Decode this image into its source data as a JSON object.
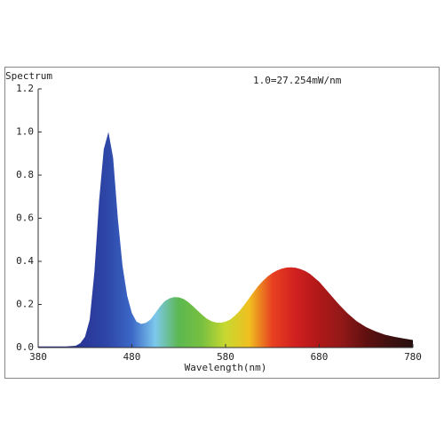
{
  "chart_data": {
    "type": "area",
    "title": "Spectrum",
    "subtitle": "1.0=27.254mW/nm",
    "x_label": "Wavelength(nm)",
    "x": [
      380,
      390,
      400,
      410,
      420,
      425,
      430,
      435,
      440,
      445,
      450,
      455,
      460,
      465,
      470,
      475,
      480,
      485,
      490,
      495,
      500,
      505,
      510,
      515,
      520,
      525,
      530,
      535,
      540,
      545,
      550,
      555,
      560,
      565,
      570,
      575,
      580,
      585,
      590,
      595,
      600,
      605,
      610,
      615,
      620,
      625,
      630,
      635,
      640,
      645,
      650,
      655,
      660,
      665,
      670,
      680,
      690,
      700,
      710,
      720,
      730,
      740,
      750,
      760,
      770,
      780
    ],
    "values": [
      0.005,
      0.005,
      0.005,
      0.005,
      0.008,
      0.02,
      0.05,
      0.13,
      0.35,
      0.68,
      0.92,
      1.0,
      0.88,
      0.6,
      0.38,
      0.24,
      0.16,
      0.12,
      0.11,
      0.115,
      0.13,
      0.16,
      0.19,
      0.215,
      0.228,
      0.234,
      0.233,
      0.226,
      0.212,
      0.193,
      0.172,
      0.152,
      0.134,
      0.122,
      0.116,
      0.115,
      0.12,
      0.13,
      0.148,
      0.17,
      0.198,
      0.228,
      0.258,
      0.286,
      0.31,
      0.33,
      0.346,
      0.358,
      0.366,
      0.371,
      0.372,
      0.37,
      0.364,
      0.355,
      0.342,
      0.305,
      0.255,
      0.205,
      0.16,
      0.122,
      0.095,
      0.075,
      0.06,
      0.05,
      0.042,
      0.035
    ],
    "colors": [
      "#2a2a80",
      "#2a2a80",
      "#2a389a",
      "#2e48a8",
      "#3c68c8",
      "#7cc8ec",
      "#5cb850",
      "#78c040",
      "#c8d830",
      "#f0c020",
      "#e84020",
      "#d02020",
      "#b01818",
      "#901818",
      "#601010",
      "#401010",
      "#281010"
    ],
    "xlim": [
      380,
      780
    ],
    "xticks": [
      380,
      480,
      580,
      680,
      780
    ],
    "ylim": [
      0,
      1.2
    ],
    "yticks": [
      {
        "value": 0,
        "label": "0.0"
      },
      0.2,
      0.4,
      0.6,
      0.8,
      {
        "value": 1,
        "label": "1.0"
      },
      1.2
    ]
  }
}
